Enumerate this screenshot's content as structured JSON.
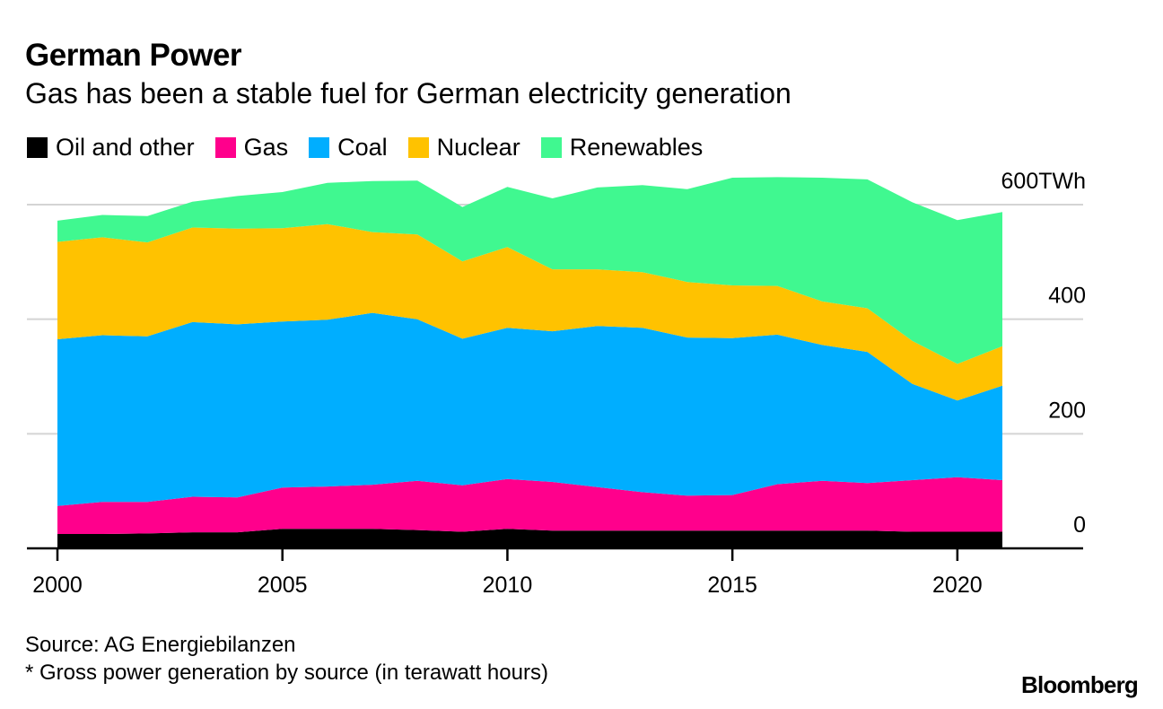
{
  "header": {
    "title": "German Power",
    "subtitle": "Gas has been a stable fuel for German electricity generation"
  },
  "legend": [
    {
      "label": "Oil and other",
      "color": "#000000"
    },
    {
      "label": "Gas",
      "color": "#ff008c"
    },
    {
      "label": "Coal",
      "color": "#00aeff"
    },
    {
      "label": "Nuclear",
      "color": "#ffc200"
    },
    {
      "label": "Renewables",
      "color": "#40f890"
    }
  ],
  "footer": {
    "source": "Source: AG Energiebilanzen",
    "note": "* Gross power generation by source (in terawatt hours)",
    "brand": "Bloomberg"
  },
  "chart_data": {
    "type": "area",
    "stacked": true,
    "title": "German Power",
    "subtitle": "Gas has been a stable fuel for German electricity generation",
    "xlabel": "",
    "ylabel": "TWh",
    "x": [
      2000,
      2001,
      2002,
      2003,
      2004,
      2005,
      2006,
      2007,
      2008,
      2009,
      2010,
      2011,
      2012,
      2013,
      2014,
      2015,
      2016,
      2017,
      2018,
      2019,
      2020,
      2021
    ],
    "xlim": [
      2000,
      2022.8
    ],
    "ylim": [
      0,
      600
    ],
    "x_ticks": [
      2000,
      2005,
      2010,
      2015,
      2020
    ],
    "x_tick_labels": [
      "2000",
      "2005",
      "2010",
      "2015",
      "2020"
    ],
    "y_ticks": [
      0,
      200,
      400,
      600
    ],
    "y_tick_labels": [
      "0",
      "200",
      "400",
      "600TWh"
    ],
    "grid": true,
    "legend_position": "top-left",
    "series": [
      {
        "name": "Oil and other",
        "color": "#000000",
        "values": [
          25,
          25,
          26,
          28,
          28,
          34,
          34,
          34,
          32,
          29,
          34,
          31,
          31,
          31,
          31,
          31,
          31,
          31,
          31,
          29,
          29,
          29
        ]
      },
      {
        "name": "Gas",
        "color": "#ff008c",
        "values": [
          49,
          56,
          55,
          62,
          61,
          72,
          74,
          77,
          86,
          81,
          87,
          85,
          76,
          67,
          61,
          62,
          81,
          87,
          83,
          90,
          95,
          90
        ]
      },
      {
        "name": "Coal",
        "color": "#00aeff",
        "values": [
          291,
          291,
          289,
          305,
          302,
          290,
          291,
          300,
          282,
          256,
          264,
          263,
          281,
          287,
          276,
          274,
          261,
          237,
          229,
          168,
          134,
          165
        ]
      },
      {
        "name": "Nuclear",
        "color": "#ffc200",
        "values": [
          170,
          171,
          164,
          165,
          167,
          163,
          167,
          141,
          148,
          135,
          141,
          108,
          99,
          97,
          97,
          92,
          85,
          76,
          76,
          75,
          64,
          69
        ]
      },
      {
        "name": "Renewables",
        "color": "#40f890",
        "values": [
          37,
          39,
          46,
          45,
          57,
          63,
          72,
          89,
          94,
          95,
          105,
          124,
          143,
          152,
          162,
          188,
          190,
          216,
          225,
          242,
          251,
          234
        ]
      }
    ]
  }
}
